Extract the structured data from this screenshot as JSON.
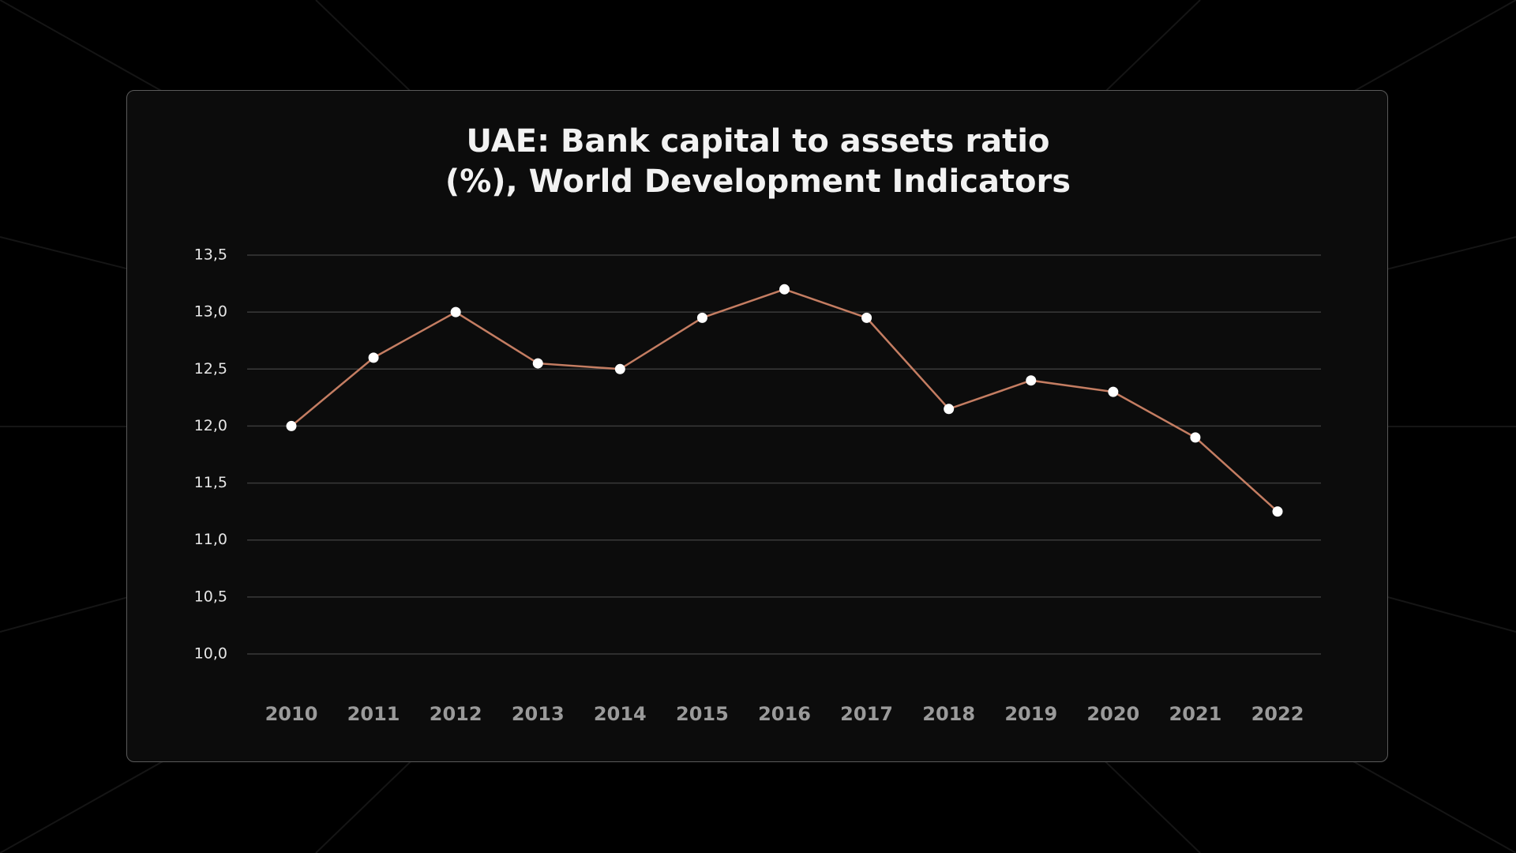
{
  "chart_data": {
    "type": "line",
    "title": "UAE: Bank capital to assets ratio (%), World Development Indicators",
    "categories": [
      "2010",
      "2011",
      "2012",
      "2013",
      "2014",
      "2015",
      "2016",
      "2017",
      "2018",
      "2019",
      "2020",
      "2021",
      "2022"
    ],
    "series": [
      {
        "color": "#c47d62",
        "values": [
          12.0,
          12.6,
          13.0,
          12.55,
          12.5,
          12.95,
          13.2,
          12.95,
          12.15,
          12.4,
          12.3,
          11.9,
          11.25
        ]
      }
    ],
    "ylim": [
      10.0,
      13.5
    ],
    "yticks": [
      {
        "value": 10.0,
        "label": "10,0"
      },
      {
        "value": 10.5,
        "label": "10,5"
      },
      {
        "value": 11.0,
        "label": "11,0"
      },
      {
        "value": 11.5,
        "label": "11,5"
      },
      {
        "value": 12.0,
        "label": "12,0"
      },
      {
        "value": 12.5,
        "label": "12,5"
      },
      {
        "value": 13.0,
        "label": "13,0"
      },
      {
        "value": 13.5,
        "label": "13,5"
      }
    ],
    "grid": true
  }
}
